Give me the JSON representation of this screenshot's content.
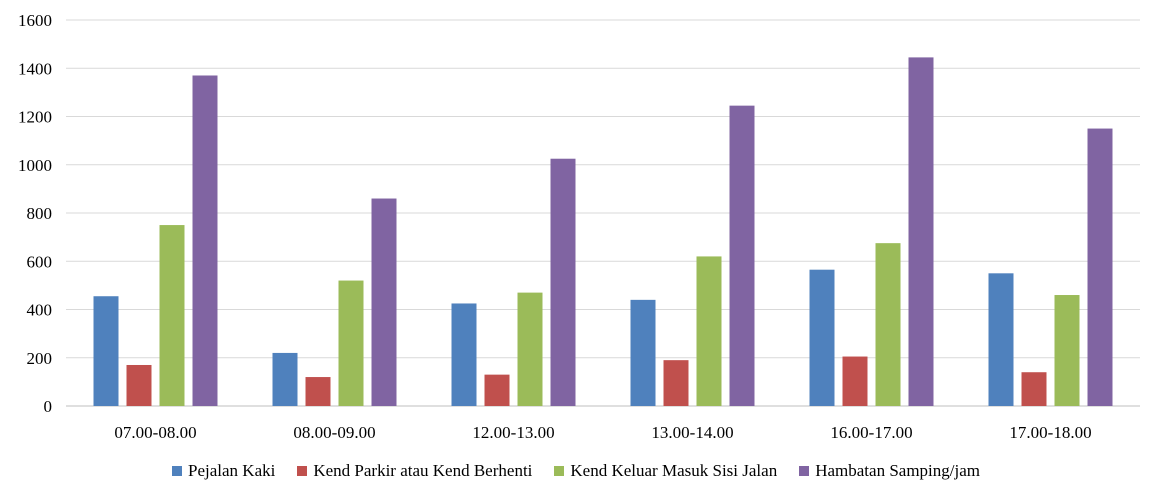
{
  "chart_data": {
    "type": "bar",
    "categories": [
      "07.00-08.00",
      "08.00-09.00",
      "12.00-13.00",
      "13.00-14.00",
      "16.00-17.00",
      "17.00-18.00"
    ],
    "series": [
      {
        "name": "Pejalan Kaki",
        "color": "#4F81BD",
        "values": [
          455,
          220,
          425,
          440,
          565,
          550
        ]
      },
      {
        "name": "Kend Parkir atau Kend Berhenti",
        "color": "#C0504D",
        "values": [
          170,
          120,
          130,
          190,
          205,
          140
        ]
      },
      {
        "name": "Kend Keluar Masuk Sisi Jalan",
        "color": "#9BBB59",
        "values": [
          750,
          520,
          470,
          620,
          675,
          460
        ]
      },
      {
        "name": "Hambatan Samping/jam",
        "color": "#8064A2",
        "values": [
          1370,
          860,
          1025,
          1245,
          1445,
          1150
        ]
      }
    ],
    "yticks": [
      "0",
      "200",
      "400",
      "600",
      "800",
      "1000",
      "1200",
      "1400",
      "1600"
    ],
    "ylim": [
      0,
      1600
    ],
    "grid": true,
    "legend_position": "bottom",
    "title": "",
    "xlabel": "",
    "ylabel": ""
  }
}
